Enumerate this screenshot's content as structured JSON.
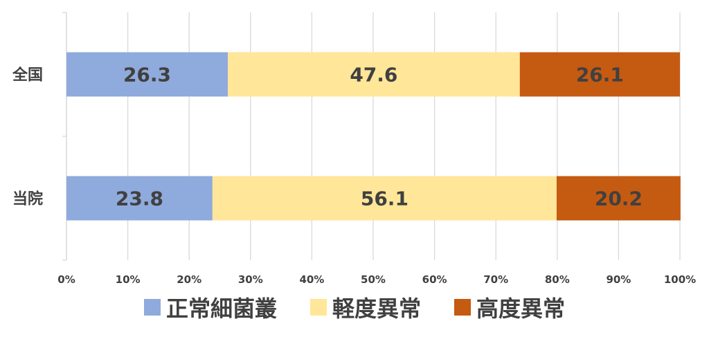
{
  "chart_data": {
    "type": "bar",
    "orientation": "horizontal",
    "stacked": true,
    "percent_stacked": true,
    "categories": [
      "全国",
      "当院"
    ],
    "series": [
      {
        "name": "正常細菌叢",
        "values": [
          26.3,
          23.8
        ],
        "color": "#8faadc"
      },
      {
        "name": "軽度異常",
        "values": [
          47.6,
          56.1
        ],
        "color": "#ffe699"
      },
      {
        "name": "高度異常",
        "values": [
          26.1,
          20.2
        ],
        "color": "#c55a11"
      }
    ],
    "data_labels": [
      [
        "26.3",
        "23.8"
      ],
      [
        "47.6",
        "56.1"
      ],
      [
        "26.1",
        "20.2"
      ]
    ],
    "xaxis": {
      "ticks": [
        "0%",
        "10%",
        "20%",
        "30%",
        "40%",
        "50%",
        "60%",
        "70%",
        "80%",
        "90%",
        "100%"
      ],
      "range": [
        0,
        100
      ]
    },
    "grid": true,
    "legend_position": "bottom"
  }
}
